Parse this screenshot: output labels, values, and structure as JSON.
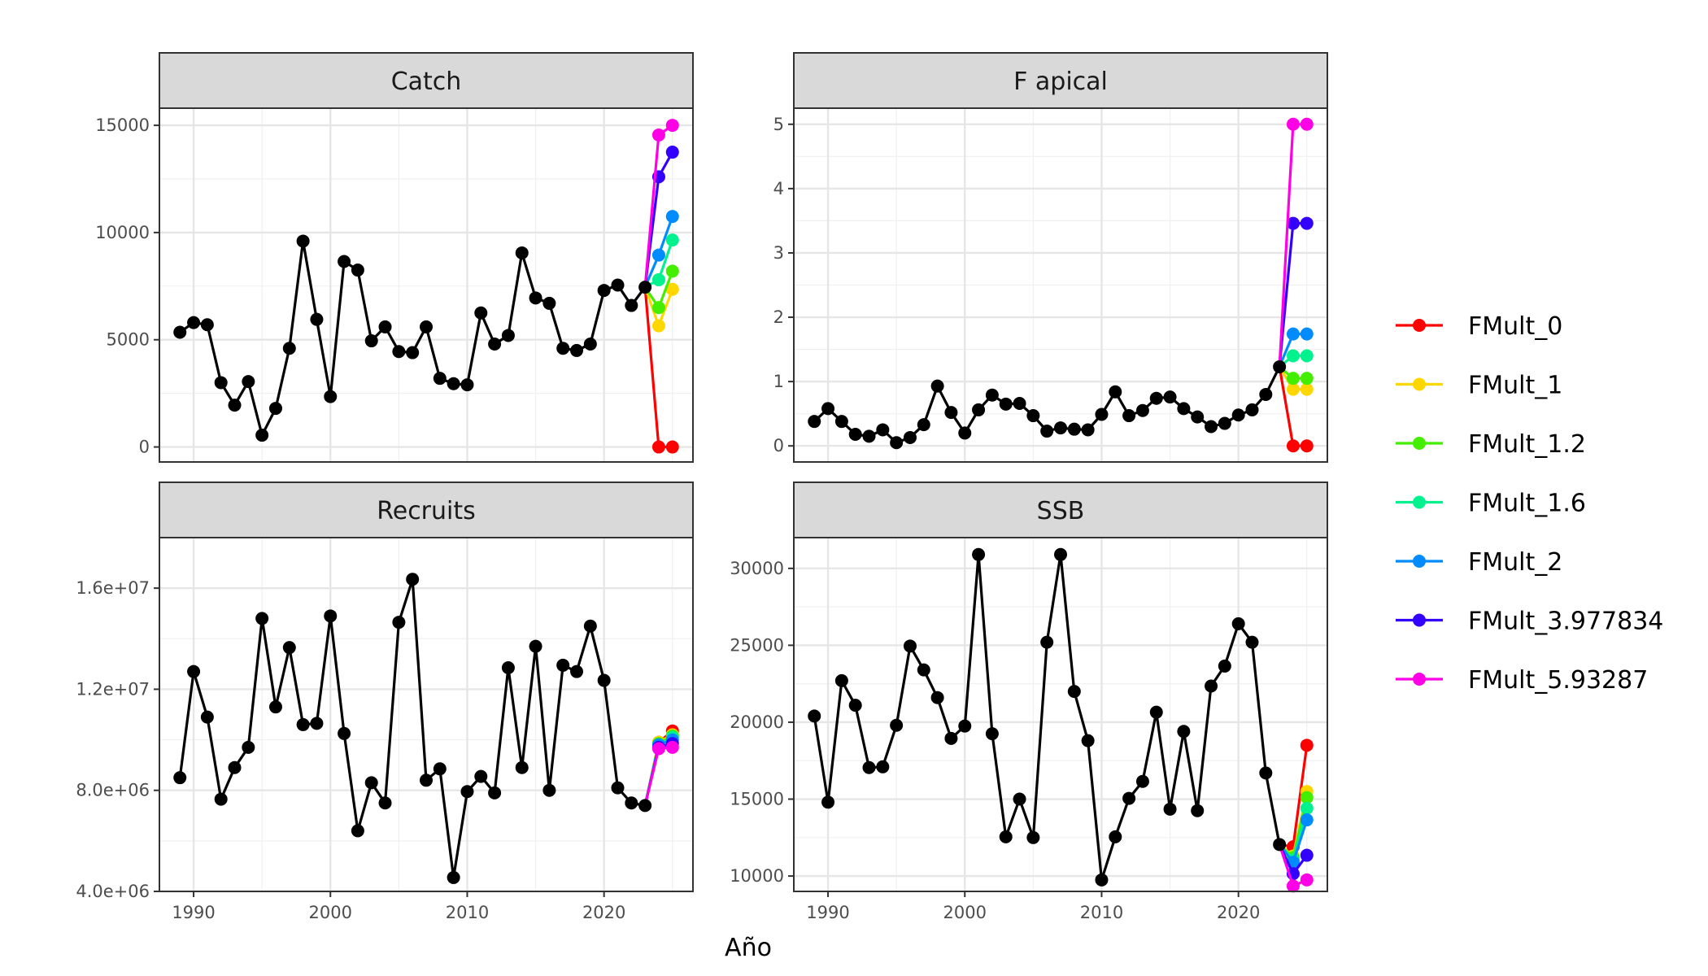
{
  "chart_data": {
    "type": "line",
    "xlabel": "Año",
    "ylabel": "",
    "xlim": [
      1987.5,
      2026.5
    ],
    "x_ticks": [
      1990,
      2000,
      2010,
      2020
    ],
    "legend_placement": "right",
    "grid": true,
    "historic_color": "#000000",
    "legend": [
      {
        "name": "FMult_0",
        "color": "#ff0000"
      },
      {
        "name": "FMult_1",
        "color": "#ffd700"
      },
      {
        "name": "FMult_1.2",
        "color": "#44ee00"
      },
      {
        "name": "FMult_1.6",
        "color": "#00f28f"
      },
      {
        "name": "FMult_2",
        "color": "#008cff"
      },
      {
        "name": "FMult_3.977834",
        "color": "#3300ff"
      },
      {
        "name": "FMult_5.93287",
        "color": "#ff00e6"
      }
    ],
    "panels": [
      {
        "title": "Catch",
        "ylim": [
          -700,
          15800
        ],
        "y_ticks": [
          0,
          5000,
          10000,
          15000
        ],
        "y_tick_labels": [
          "0",
          "5000",
          "10000",
          "15000"
        ],
        "historic": {
          "x": [
            1989,
            1990,
            1991,
            1992,
            1993,
            1994,
            1995,
            1996,
            1997,
            1998,
            1999,
            2000,
            2001,
            2002,
            2003,
            2004,
            2005,
            2006,
            2007,
            2008,
            2009,
            2010,
            2011,
            2012,
            2013,
            2014,
            2015,
            2016,
            2017,
            2018,
            2019,
            2020,
            2021,
            2022,
            2023
          ],
          "y": [
            5350,
            5800,
            5700,
            3000,
            1950,
            3050,
            550,
            1800,
            4600,
            9600,
            5950,
            2350,
            8650,
            8250,
            4950,
            5600,
            4450,
            4400,
            5600,
            3200,
            2950,
            2900,
            6250,
            4800,
            5200,
            9050,
            6950,
            6700,
            4600,
            4500,
            4800,
            7300,
            7550,
            6600,
            7450
          ]
        },
        "series": [
          {
            "name": "FMult_0",
            "x": [
              2023,
              2024,
              2025
            ],
            "y": [
              7450,
              0,
              0
            ]
          },
          {
            "name": "FMult_1",
            "x": [
              2023,
              2024,
              2025
            ],
            "y": [
              7450,
              5650,
              7350
            ]
          },
          {
            "name": "FMult_1.2",
            "x": [
              2023,
              2024,
              2025
            ],
            "y": [
              7450,
              6500,
              8200
            ]
          },
          {
            "name": "FMult_1.6",
            "x": [
              2023,
              2024,
              2025
            ],
            "y": [
              7450,
              7800,
              9650
            ]
          },
          {
            "name": "FMult_2",
            "x": [
              2023,
              2024,
              2025
            ],
            "y": [
              7450,
              8950,
              10750
            ]
          },
          {
            "name": "FMult_3.977834",
            "x": [
              2023,
              2024,
              2025
            ],
            "y": [
              7450,
              12600,
              13750
            ]
          },
          {
            "name": "FMult_5.93287",
            "x": [
              2023,
              2024,
              2025
            ],
            "y": [
              7450,
              14550,
              15000
            ]
          }
        ]
      },
      {
        "title": "F apical",
        "ylim": [
          -0.25,
          5.25
        ],
        "y_ticks": [
          0,
          1,
          2,
          3,
          4,
          5
        ],
        "y_tick_labels": [
          "0",
          "1",
          "2",
          "3",
          "4",
          "5"
        ],
        "historic": {
          "x": [
            1989,
            1990,
            1991,
            1992,
            1993,
            1994,
            1995,
            1996,
            1997,
            1998,
            1999,
            2000,
            2001,
            2002,
            2003,
            2004,
            2005,
            2006,
            2007,
            2008,
            2009,
            2010,
            2011,
            2012,
            2013,
            2014,
            2015,
            2016,
            2017,
            2018,
            2019,
            2020,
            2021,
            2022,
            2023
          ],
          "y": [
            0.38,
            0.58,
            0.38,
            0.18,
            0.15,
            0.25,
            0.05,
            0.13,
            0.33,
            0.93,
            0.52,
            0.2,
            0.56,
            0.79,
            0.65,
            0.66,
            0.47,
            0.23,
            0.28,
            0.26,
            0.25,
            0.49,
            0.84,
            0.47,
            0.55,
            0.74,
            0.76,
            0.58,
            0.45,
            0.3,
            0.35,
            0.48,
            0.56,
            0.8,
            1.23
          ]
        },
        "series": [
          {
            "name": "FMult_0",
            "x": [
              2023,
              2024,
              2025
            ],
            "y": [
              1.23,
              0,
              0
            ]
          },
          {
            "name": "FMult_1",
            "x": [
              2023,
              2024,
              2025
            ],
            "y": [
              1.23,
              0.88,
              0.88
            ]
          },
          {
            "name": "FMult_1.2",
            "x": [
              2023,
              2024,
              2025
            ],
            "y": [
              1.23,
              1.05,
              1.05
            ]
          },
          {
            "name": "FMult_1.6",
            "x": [
              2023,
              2024,
              2025
            ],
            "y": [
              1.23,
              1.4,
              1.4
            ]
          },
          {
            "name": "FMult_2",
            "x": [
              2023,
              2024,
              2025
            ],
            "y": [
              1.23,
              1.74,
              1.74
            ]
          },
          {
            "name": "FMult_3.977834",
            "x": [
              2023,
              2024,
              2025
            ],
            "y": [
              1.23,
              3.46,
              3.46
            ]
          },
          {
            "name": "FMult_5.93287",
            "x": [
              2023,
              2024,
              2025
            ],
            "y": [
              1.23,
              5.0,
              5.0
            ]
          }
        ]
      },
      {
        "title": "Recruits",
        "ylim": [
          4000000,
          18000000
        ],
        "y_ticks": [
          4000000,
          8000000,
          12000000,
          16000000
        ],
        "y_tick_labels": [
          "4.0e+06",
          "8.0e+06",
          "1.2e+07",
          "1.6e+07"
        ],
        "historic": {
          "x": [
            1989,
            1990,
            1991,
            1992,
            1993,
            1994,
            1995,
            1996,
            1997,
            1998,
            1999,
            2000,
            2001,
            2002,
            2003,
            2004,
            2005,
            2006,
            2007,
            2008,
            2009,
            2010,
            2011,
            2012,
            2013,
            2014,
            2015,
            2016,
            2017,
            2018,
            2019,
            2020,
            2021,
            2022,
            2023
          ],
          "y": [
            8500000,
            12700000,
            10900000,
            7650000,
            8900000,
            9700000,
            14800000,
            11300000,
            13650000,
            10600000,
            10650000,
            14900000,
            10250000,
            6400000,
            8300000,
            7500000,
            14650000,
            16350000,
            8400000,
            8850000,
            4550000,
            7950000,
            8550000,
            7900000,
            12850000,
            8900000,
            13700000,
            8000000,
            12950000,
            12700000,
            14500000,
            12350000,
            8100000,
            7500000,
            7400000
          ]
        },
        "series": [
          {
            "name": "FMult_0",
            "x": [
              2023,
              2024,
              2025
            ],
            "y": [
              7400000,
              9900000,
              10350000
            ]
          },
          {
            "name": "FMult_1",
            "x": [
              2023,
              2024,
              2025
            ],
            "y": [
              7400000,
              9900000,
              10200000
            ]
          },
          {
            "name": "FMult_1.2",
            "x": [
              2023,
              2024,
              2025
            ],
            "y": [
              7400000,
              9850000,
              10150000
            ]
          },
          {
            "name": "FMult_1.6",
            "x": [
              2023,
              2024,
              2025
            ],
            "y": [
              7400000,
              9800000,
              10100000
            ]
          },
          {
            "name": "FMult_2",
            "x": [
              2023,
              2024,
              2025
            ],
            "y": [
              7400000,
              9800000,
              10000000
            ]
          },
          {
            "name": "FMult_3.977834",
            "x": [
              2023,
              2024,
              2025
            ],
            "y": [
              7400000,
              9700000,
              9850000
            ]
          },
          {
            "name": "FMult_5.93287",
            "x": [
              2023,
              2024,
              2025
            ],
            "y": [
              7400000,
              9650000,
              9700000
            ]
          }
        ]
      },
      {
        "title": "SSB",
        "ylim": [
          9000,
          32000
        ],
        "y_ticks": [
          10000,
          15000,
          20000,
          25000,
          30000
        ],
        "y_tick_labels": [
          "10000",
          "15000",
          "20000",
          "25000",
          "30000"
        ],
        "historic": {
          "x": [
            1989,
            1990,
            1991,
            1992,
            1993,
            1994,
            1995,
            1996,
            1997,
            1998,
            1999,
            2000,
            2001,
            2002,
            2003,
            2004,
            2005,
            2006,
            2007,
            2008,
            2009,
            2010,
            2011,
            2012,
            2013,
            2014,
            2015,
            2016,
            2017,
            2018,
            2019,
            2020,
            2021,
            2022,
            2023
          ],
          "y": [
            20400,
            14800,
            22700,
            21100,
            17050,
            17100,
            19800,
            24950,
            23400,
            21600,
            18950,
            19750,
            30900,
            19250,
            12550,
            15000,
            12500,
            25200,
            30900,
            22000,
            18800,
            9750,
            12550,
            15050,
            16150,
            20650,
            14350,
            19400,
            14250,
            22350,
            23650,
            26400,
            25200,
            16700,
            12050
          ]
        },
        "series": [
          {
            "name": "FMult_0",
            "x": [
              2023,
              2024,
              2025
            ],
            "y": [
              12050,
              11900,
              18500
            ]
          },
          {
            "name": "FMult_1",
            "x": [
              2023,
              2024,
              2025
            ],
            "y": [
              12050,
              11300,
              15500
            ]
          },
          {
            "name": "FMult_1.2",
            "x": [
              2023,
              2024,
              2025
            ],
            "y": [
              12050,
              11200,
              15100
            ]
          },
          {
            "name": "FMult_1.6",
            "x": [
              2023,
              2024,
              2025
            ],
            "y": [
              12050,
              11050,
              14400
            ]
          },
          {
            "name": "FMult_2",
            "x": [
              2023,
              2024,
              2025
            ],
            "y": [
              12050,
              10900,
              13650
            ]
          },
          {
            "name": "FMult_3.977834",
            "x": [
              2023,
              2024,
              2025
            ],
            "y": [
              12050,
              10150,
              11350
            ]
          },
          {
            "name": "FMult_5.93287",
            "x": [
              2023,
              2024,
              2025
            ],
            "y": [
              12050,
              9350,
              9750
            ]
          }
        ]
      }
    ]
  }
}
